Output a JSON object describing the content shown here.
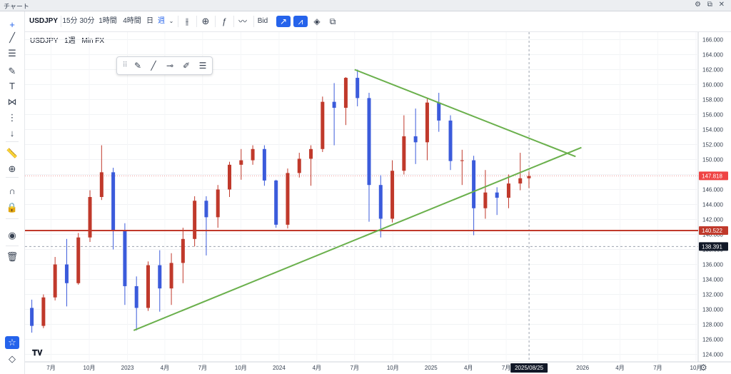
{
  "window": {
    "title": "チャート",
    "controls": [
      "⚙",
      "⧉",
      "✕"
    ]
  },
  "toolbar": {
    "symbol": "USDJPY",
    "timeframes": [
      "15分",
      "30分",
      "1時間",
      "4時間",
      "日",
      "週"
    ],
    "active_timeframe": "週",
    "price_source": "Bid"
  },
  "legend": {
    "symbol": "USDJPY",
    "interval": "1週",
    "source": "Min FX"
  },
  "left_tools": [
    {
      "name": "crosshair-icon",
      "glyph": "+"
    },
    {
      "name": "trend-line-icon",
      "glyph": "╱"
    },
    {
      "name": "horizontal-lines-icon",
      "glyph": "☰"
    },
    {
      "name": "pen-icon",
      "glyph": "✎"
    },
    {
      "name": "text-icon",
      "glyph": "T"
    },
    {
      "name": "pattern-icon",
      "glyph": "⋈"
    },
    {
      "name": "fib-icon",
      "glyph": "⋮"
    },
    {
      "name": "arrow-down-icon",
      "glyph": "↓"
    },
    {
      "name": "ruler-icon",
      "glyph": "📏"
    },
    {
      "name": "zoom-icon",
      "glyph": "⊕"
    },
    {
      "name": "magnet-icon",
      "glyph": "∩"
    },
    {
      "name": "lock-icon",
      "glyph": "🔒"
    },
    {
      "name": "eye-icon",
      "glyph": "◉"
    },
    {
      "name": "trash-icon",
      "glyph": "🗑"
    }
  ],
  "chart_data": {
    "type": "candlestick",
    "y_axis_ticks": [
      124,
      126,
      128,
      130,
      132,
      134,
      136,
      138,
      140,
      142,
      144,
      146,
      148,
      150,
      152,
      154,
      156,
      158,
      160,
      162,
      164,
      166
    ],
    "ylim": [
      123,
      167
    ],
    "x_axis_labels": [
      "7月",
      "10月",
      "2023",
      "4月",
      "7月",
      "10月",
      "2024",
      "4月",
      "7月",
      "10月",
      "2025",
      "4月",
      "7月",
      "2025/08/25",
      "2026",
      "4月",
      "7月",
      "10月"
    ],
    "highlight_x_label": "2025/08/25",
    "price_labels": [
      {
        "value": 147.818,
        "label": "147.818",
        "color": "#ef4444"
      },
      {
        "value": 140.522,
        "label": "140.522",
        "color": "#c0392b"
      },
      {
        "value": 138.391,
        "label": "138.391",
        "color": "#111827"
      }
    ],
    "horizontal_lines": [
      {
        "value": 140.522,
        "color": "#c0392b"
      }
    ],
    "trend_lines": [
      {
        "from": [
          "2023-01-16",
          127.2
        ],
        "to": [
          "2025-12-29",
          151.6
        ],
        "color": "#6ab04c"
      },
      {
        "from": [
          "2024-07-01",
          162.0
        ],
        "to": [
          "2025-12-15",
          150.4
        ],
        "color": "#6ab04c"
      }
    ],
    "candles": [
      [
        "2022-05-02",
        130.2,
        131.3,
        126.9,
        127.8
      ],
      [
        "2022-05-30",
        127.8,
        132.0,
        127.5,
        131.6
      ],
      [
        "2022-06-27",
        131.6,
        137.0,
        131.2,
        136.0
      ],
      [
        "2022-07-25",
        136.0,
        139.4,
        130.4,
        133.5
      ],
      [
        "2022-08-22",
        133.5,
        140.2,
        133.3,
        139.6
      ],
      [
        "2022-09-19",
        139.6,
        145.9,
        139.0,
        145.0
      ],
      [
        "2022-10-17",
        145.0,
        151.9,
        144.6,
        148.3
      ],
      [
        "2022-11-14",
        148.3,
        148.9,
        138.0,
        140.5
      ],
      [
        "2022-12-12",
        140.5,
        141.5,
        130.6,
        133.1
      ],
      [
        "2023-01-09",
        133.1,
        134.4,
        127.2,
        130.2
      ],
      [
        "2023-02-06",
        130.2,
        136.4,
        129.8,
        135.9
      ],
      [
        "2023-03-06",
        135.9,
        137.9,
        129.7,
        132.8
      ],
      [
        "2023-04-03",
        132.8,
        137.5,
        130.6,
        136.2
      ],
      [
        "2023-05-01",
        136.2,
        140.9,
        133.5,
        139.4
      ],
      [
        "2023-05-29",
        139.4,
        145.1,
        138.4,
        144.5
      ],
      [
        "2023-06-26",
        144.5,
        145.1,
        137.2,
        142.3
      ],
      [
        "2023-07-24",
        142.3,
        146.6,
        140.9,
        146.0
      ],
      [
        "2023-08-21",
        146.0,
        149.7,
        145.0,
        149.3
      ],
      [
        "2023-09-18",
        149.3,
        151.4,
        147.3,
        149.9
      ],
      [
        "2023-10-16",
        149.9,
        151.9,
        149.3,
        151.4
      ],
      [
        "2023-11-13",
        151.4,
        151.9,
        146.5,
        147.2
      ],
      [
        "2023-12-11",
        147.2,
        147.3,
        140.9,
        141.3
      ],
      [
        "2024-01-08",
        141.3,
        148.8,
        140.8,
        148.2
      ],
      [
        "2024-02-05",
        148.2,
        150.9,
        147.6,
        150.1
      ],
      [
        "2024-03-04",
        150.1,
        151.9,
        146.5,
        151.4
      ],
      [
        "2024-04-01",
        151.4,
        158.4,
        151.0,
        157.7
      ],
      [
        "2024-04-29",
        157.7,
        160.2,
        151.9,
        156.9
      ],
      [
        "2024-05-27",
        156.9,
        161.0,
        154.6,
        160.9
      ],
      [
        "2024-06-24",
        160.9,
        162.0,
        157.1,
        158.2
      ],
      [
        "2024-07-22",
        158.2,
        158.9,
        141.7,
        146.6
      ],
      [
        "2024-08-19",
        146.6,
        147.9,
        139.6,
        142.1
      ],
      [
        "2024-09-16",
        142.1,
        149.9,
        141.6,
        148.5
      ],
      [
        "2024-10-14",
        148.5,
        155.9,
        148.0,
        153.1
      ],
      [
        "2024-11-11",
        153.1,
        156.8,
        149.4,
        152.3
      ],
      [
        "2024-12-09",
        152.3,
        158.1,
        149.9,
        157.6
      ],
      [
        "2025-01-06",
        157.6,
        158.9,
        153.7,
        155.2
      ],
      [
        "2025-02-03",
        155.2,
        155.9,
        148.6,
        149.8
      ],
      [
        "2025-03-03",
        149.8,
        151.3,
        146.6,
        149.9
      ],
      [
        "2025-03-31",
        149.9,
        150.5,
        139.9,
        143.5
      ],
      [
        "2025-04-28",
        143.5,
        148.6,
        142.1,
        145.6
      ],
      [
        "2025-05-26",
        145.6,
        146.3,
        142.6,
        144.9
      ],
      [
        "2025-06-23",
        144.9,
        148.0,
        143.5,
        146.8
      ],
      [
        "2025-07-21",
        146.8,
        150.9,
        145.9,
        147.5
      ],
      [
        "2025-08-11",
        147.5,
        148.4,
        146.2,
        147.8
      ]
    ]
  }
}
